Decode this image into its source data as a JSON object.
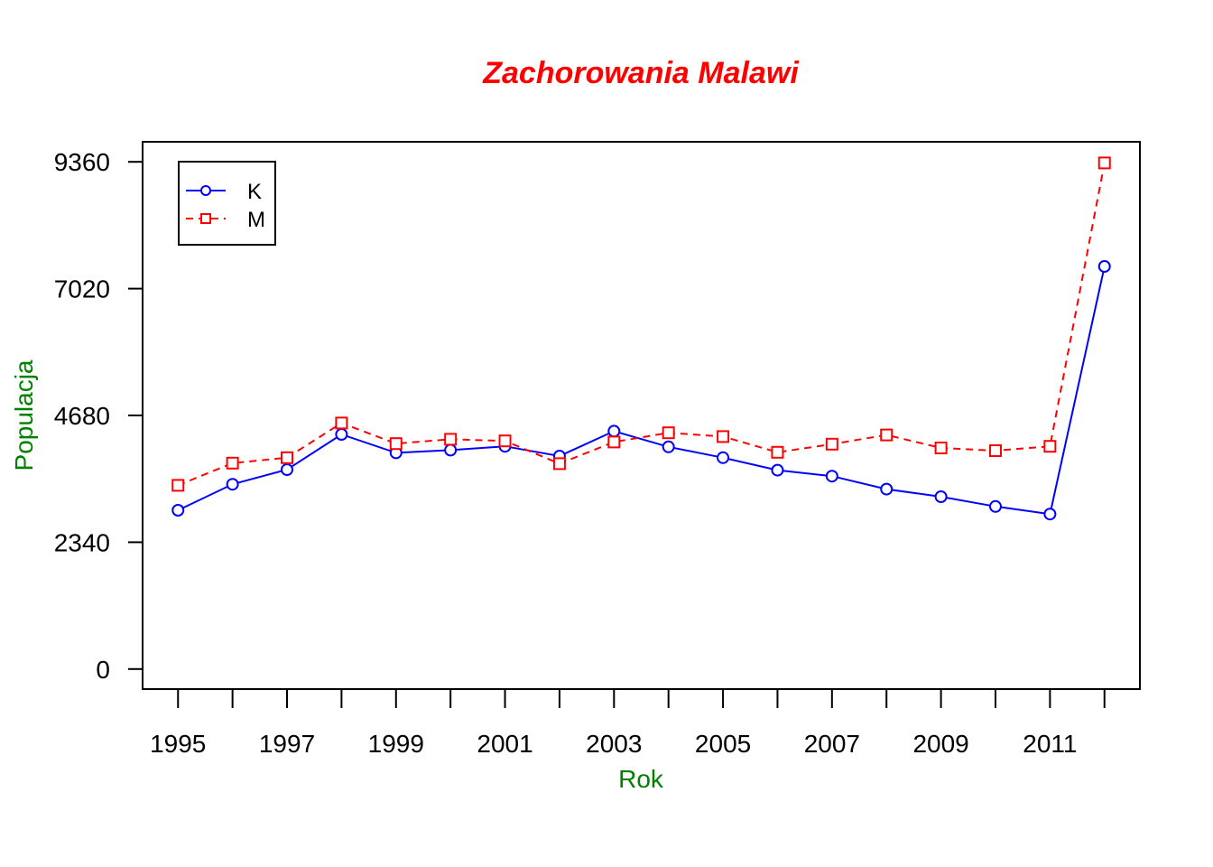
{
  "chart_data": {
    "type": "line",
    "title": "Zachorowania Malawi",
    "xlabel": "Rok",
    "ylabel": "Populacja",
    "x": [
      1995,
      1996,
      1997,
      1998,
      1999,
      2000,
      2001,
      2002,
      2003,
      2004,
      2005,
      2006,
      2007,
      2008,
      2009,
      2010,
      2011,
      2012
    ],
    "x_tick_labels": [
      "1995",
      "1997",
      "1999",
      "2001",
      "2003",
      "2005",
      "2007",
      "2009",
      "2011"
    ],
    "y_ticks": [
      0,
      2340,
      4680,
      7020,
      9360
    ],
    "y_tick_labels": [
      "0",
      "2340",
      "4680",
      "7020",
      "9360"
    ],
    "xlim": [
      1994.35,
      2012.65
    ],
    "ylim": [
      -370,
      9730
    ],
    "legend_position": "top-left",
    "series": [
      {
        "name": "K",
        "color": "#0000ff",
        "line_style": "solid",
        "marker": "circle",
        "values": [
          2930,
          3410,
          3680,
          4330,
          3990,
          4040,
          4110,
          3930,
          4390,
          4100,
          3900,
          3670,
          3560,
          3320,
          3180,
          3000,
          2860,
          7430
        ]
      },
      {
        "name": "M",
        "color": "#ff0000",
        "line_style": "dashed",
        "marker": "square",
        "values": [
          3390,
          3800,
          3900,
          4540,
          4160,
          4240,
          4210,
          3790,
          4190,
          4360,
          4290,
          4000,
          4150,
          4320,
          4080,
          4030,
          4110,
          9340
        ]
      }
    ]
  },
  "colors": {
    "title": "#ff0000",
    "axis_label": "#008000",
    "axes": "#000000",
    "background": "#ffffff"
  }
}
